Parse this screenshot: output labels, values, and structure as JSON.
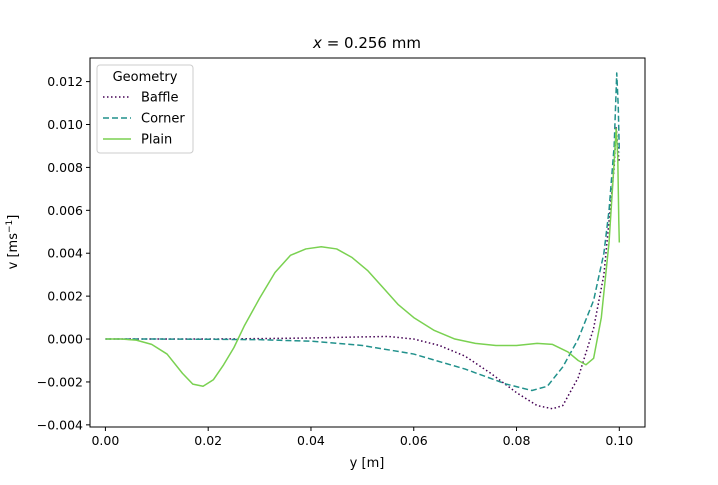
{
  "chart_data": {
    "type": "line",
    "title": "x = 0.256 mm",
    "title_var": "x",
    "title_rest": " = 0.256 mm",
    "xlabel": "y [m]",
    "ylabel_main": "v [ms",
    "ylabel_sup": "−1",
    "ylabel_end": "]",
    "xlim": [
      -0.003,
      0.105
    ],
    "ylim": [
      -0.0041,
      0.0131
    ],
    "grid": false,
    "legend": {
      "title": "Geometry",
      "placement": "top-left"
    },
    "x_ticks": [
      0.0,
      0.02,
      0.04,
      0.06,
      0.08,
      0.1
    ],
    "x_tick_labels": [
      "0.00",
      "0.02",
      "0.04",
      "0.06",
      "0.08",
      "0.10"
    ],
    "y_ticks": [
      -0.004,
      -0.002,
      0.0,
      0.002,
      0.004,
      0.006,
      0.008,
      0.01,
      0.012
    ],
    "y_tick_labels": [
      "−0.004",
      "−0.002",
      "0.000",
      "0.002",
      "0.004",
      "0.006",
      "0.008",
      "0.010",
      "0.012"
    ],
    "series": [
      {
        "name": "Baffle",
        "color": "#440154",
        "style": "dotted",
        "points": [
          [
            0.0,
            0.0
          ],
          [
            0.005,
            0.0
          ],
          [
            0.01,
            0.0
          ],
          [
            0.02,
            0.0
          ],
          [
            0.03,
            2e-05
          ],
          [
            0.04,
            5e-05
          ],
          [
            0.05,
            0.0001
          ],
          [
            0.055,
            0.00012
          ],
          [
            0.06,
            0.0
          ],
          [
            0.065,
            -0.0003
          ],
          [
            0.07,
            -0.0008
          ],
          [
            0.075,
            -0.0016
          ],
          [
            0.08,
            -0.0025
          ],
          [
            0.084,
            -0.0031
          ],
          [
            0.087,
            -0.00325
          ],
          [
            0.089,
            -0.0031
          ],
          [
            0.092,
            -0.0018
          ],
          [
            0.095,
            0.0005
          ],
          [
            0.097,
            0.003
          ],
          [
            0.098,
            0.0055
          ],
          [
            0.099,
            0.008
          ],
          [
            0.0994,
            0.0099
          ],
          [
            0.0996,
            0.0092
          ],
          [
            0.0998,
            0.0086
          ],
          [
            0.1,
            0.0083
          ]
        ]
      },
      {
        "name": "Corner",
        "color": "#21918c",
        "style": "dashed",
        "points": [
          [
            0.0,
            0.0
          ],
          [
            0.005,
            0.0
          ],
          [
            0.01,
            0.0
          ],
          [
            0.02,
            -1e-05
          ],
          [
            0.03,
            -3e-05
          ],
          [
            0.04,
            -0.0001
          ],
          [
            0.05,
            -0.0003
          ],
          [
            0.06,
            -0.0007
          ],
          [
            0.07,
            -0.0014
          ],
          [
            0.078,
            -0.0021
          ],
          [
            0.083,
            -0.0024
          ],
          [
            0.086,
            -0.0022
          ],
          [
            0.089,
            -0.0013
          ],
          [
            0.092,
            0.0
          ],
          [
            0.095,
            0.0018
          ],
          [
            0.097,
            0.004
          ],
          [
            0.098,
            0.006
          ],
          [
            0.099,
            0.009
          ],
          [
            0.0995,
            0.0124
          ],
          [
            0.0998,
            0.0108
          ],
          [
            0.1,
            0.0087
          ]
        ]
      },
      {
        "name": "Plain",
        "color": "#7ad151",
        "style": "solid",
        "points": [
          [
            0.0,
            0.0
          ],
          [
            0.003,
            0.0
          ],
          [
            0.006,
            -5e-05
          ],
          [
            0.009,
            -0.00025
          ],
          [
            0.012,
            -0.0007
          ],
          [
            0.015,
            -0.0016
          ],
          [
            0.017,
            -0.0021
          ],
          [
            0.019,
            -0.0022
          ],
          [
            0.021,
            -0.0019
          ],
          [
            0.023,
            -0.0012
          ],
          [
            0.025,
            -0.0004
          ],
          [
            0.027,
            0.0006
          ],
          [
            0.03,
            0.0019
          ],
          [
            0.033,
            0.0031
          ],
          [
            0.036,
            0.0039
          ],
          [
            0.039,
            0.0042
          ],
          [
            0.042,
            0.0043
          ],
          [
            0.045,
            0.0042
          ],
          [
            0.048,
            0.0038
          ],
          [
            0.051,
            0.0032
          ],
          [
            0.054,
            0.0024
          ],
          [
            0.057,
            0.0016
          ],
          [
            0.06,
            0.001
          ],
          [
            0.064,
            0.0004
          ],
          [
            0.068,
            0.0
          ],
          [
            0.072,
            -0.0002
          ],
          [
            0.076,
            -0.0003
          ],
          [
            0.08,
            -0.0003
          ],
          [
            0.084,
            -0.0002
          ],
          [
            0.087,
            -0.00025
          ],
          [
            0.09,
            -0.0006
          ],
          [
            0.092,
            -0.001
          ],
          [
            0.0935,
            -0.0012
          ],
          [
            0.095,
            -0.0009
          ],
          [
            0.0965,
            0.001
          ],
          [
            0.098,
            0.0045
          ],
          [
            0.0988,
            0.0075
          ],
          [
            0.0994,
            0.0098
          ],
          [
            0.0997,
            0.0085
          ],
          [
            0.0999,
            0.0055
          ],
          [
            0.1,
            0.0045
          ]
        ]
      }
    ]
  }
}
